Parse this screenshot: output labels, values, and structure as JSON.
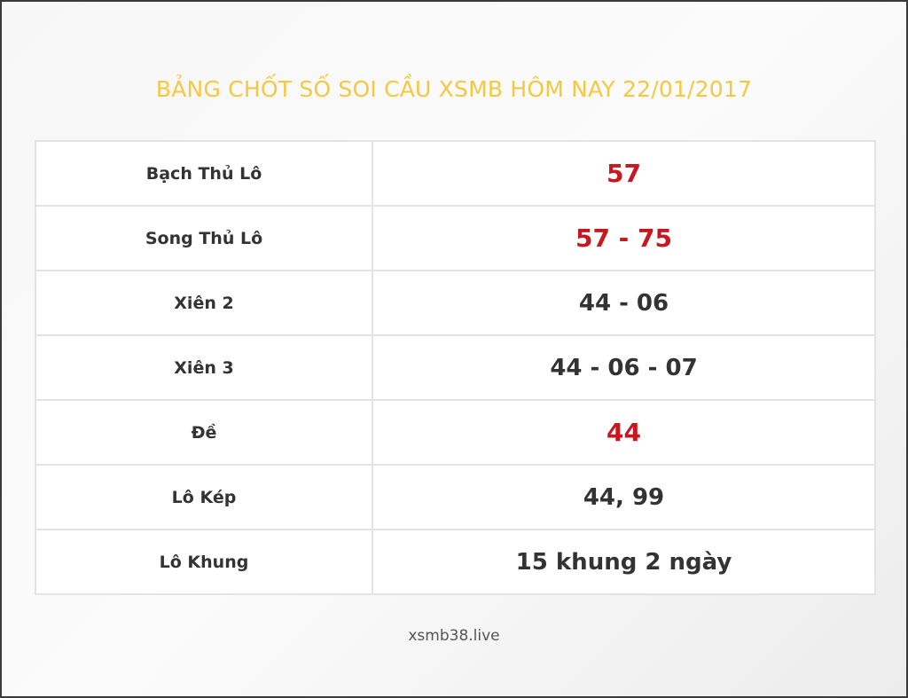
{
  "title": "BẢNG CHỐT SỐ SOI CẦU XSMB HÔM NAY 22/01/2017",
  "colors": {
    "title": "#f5c842",
    "highlight": "#c8171e",
    "text": "#333333"
  },
  "rows": [
    {
      "label": "Bạch Thủ Lô",
      "value": "57",
      "highlight": true
    },
    {
      "label": "Song Thủ Lô",
      "value": "57 - 75",
      "highlight": true
    },
    {
      "label": "Xiên 2",
      "value": "44 - 06",
      "highlight": false
    },
    {
      "label": "Xiên 3",
      "value": "44 - 06 - 07",
      "highlight": false
    },
    {
      "label": "Đề",
      "value": "44",
      "highlight": true
    },
    {
      "label": "Lô Kép",
      "value": "44, 99",
      "highlight": false
    },
    {
      "label": "Lô Khung",
      "value": "15 khung 2 ngày",
      "highlight": false
    }
  ],
  "footer": "xsmb38.live"
}
